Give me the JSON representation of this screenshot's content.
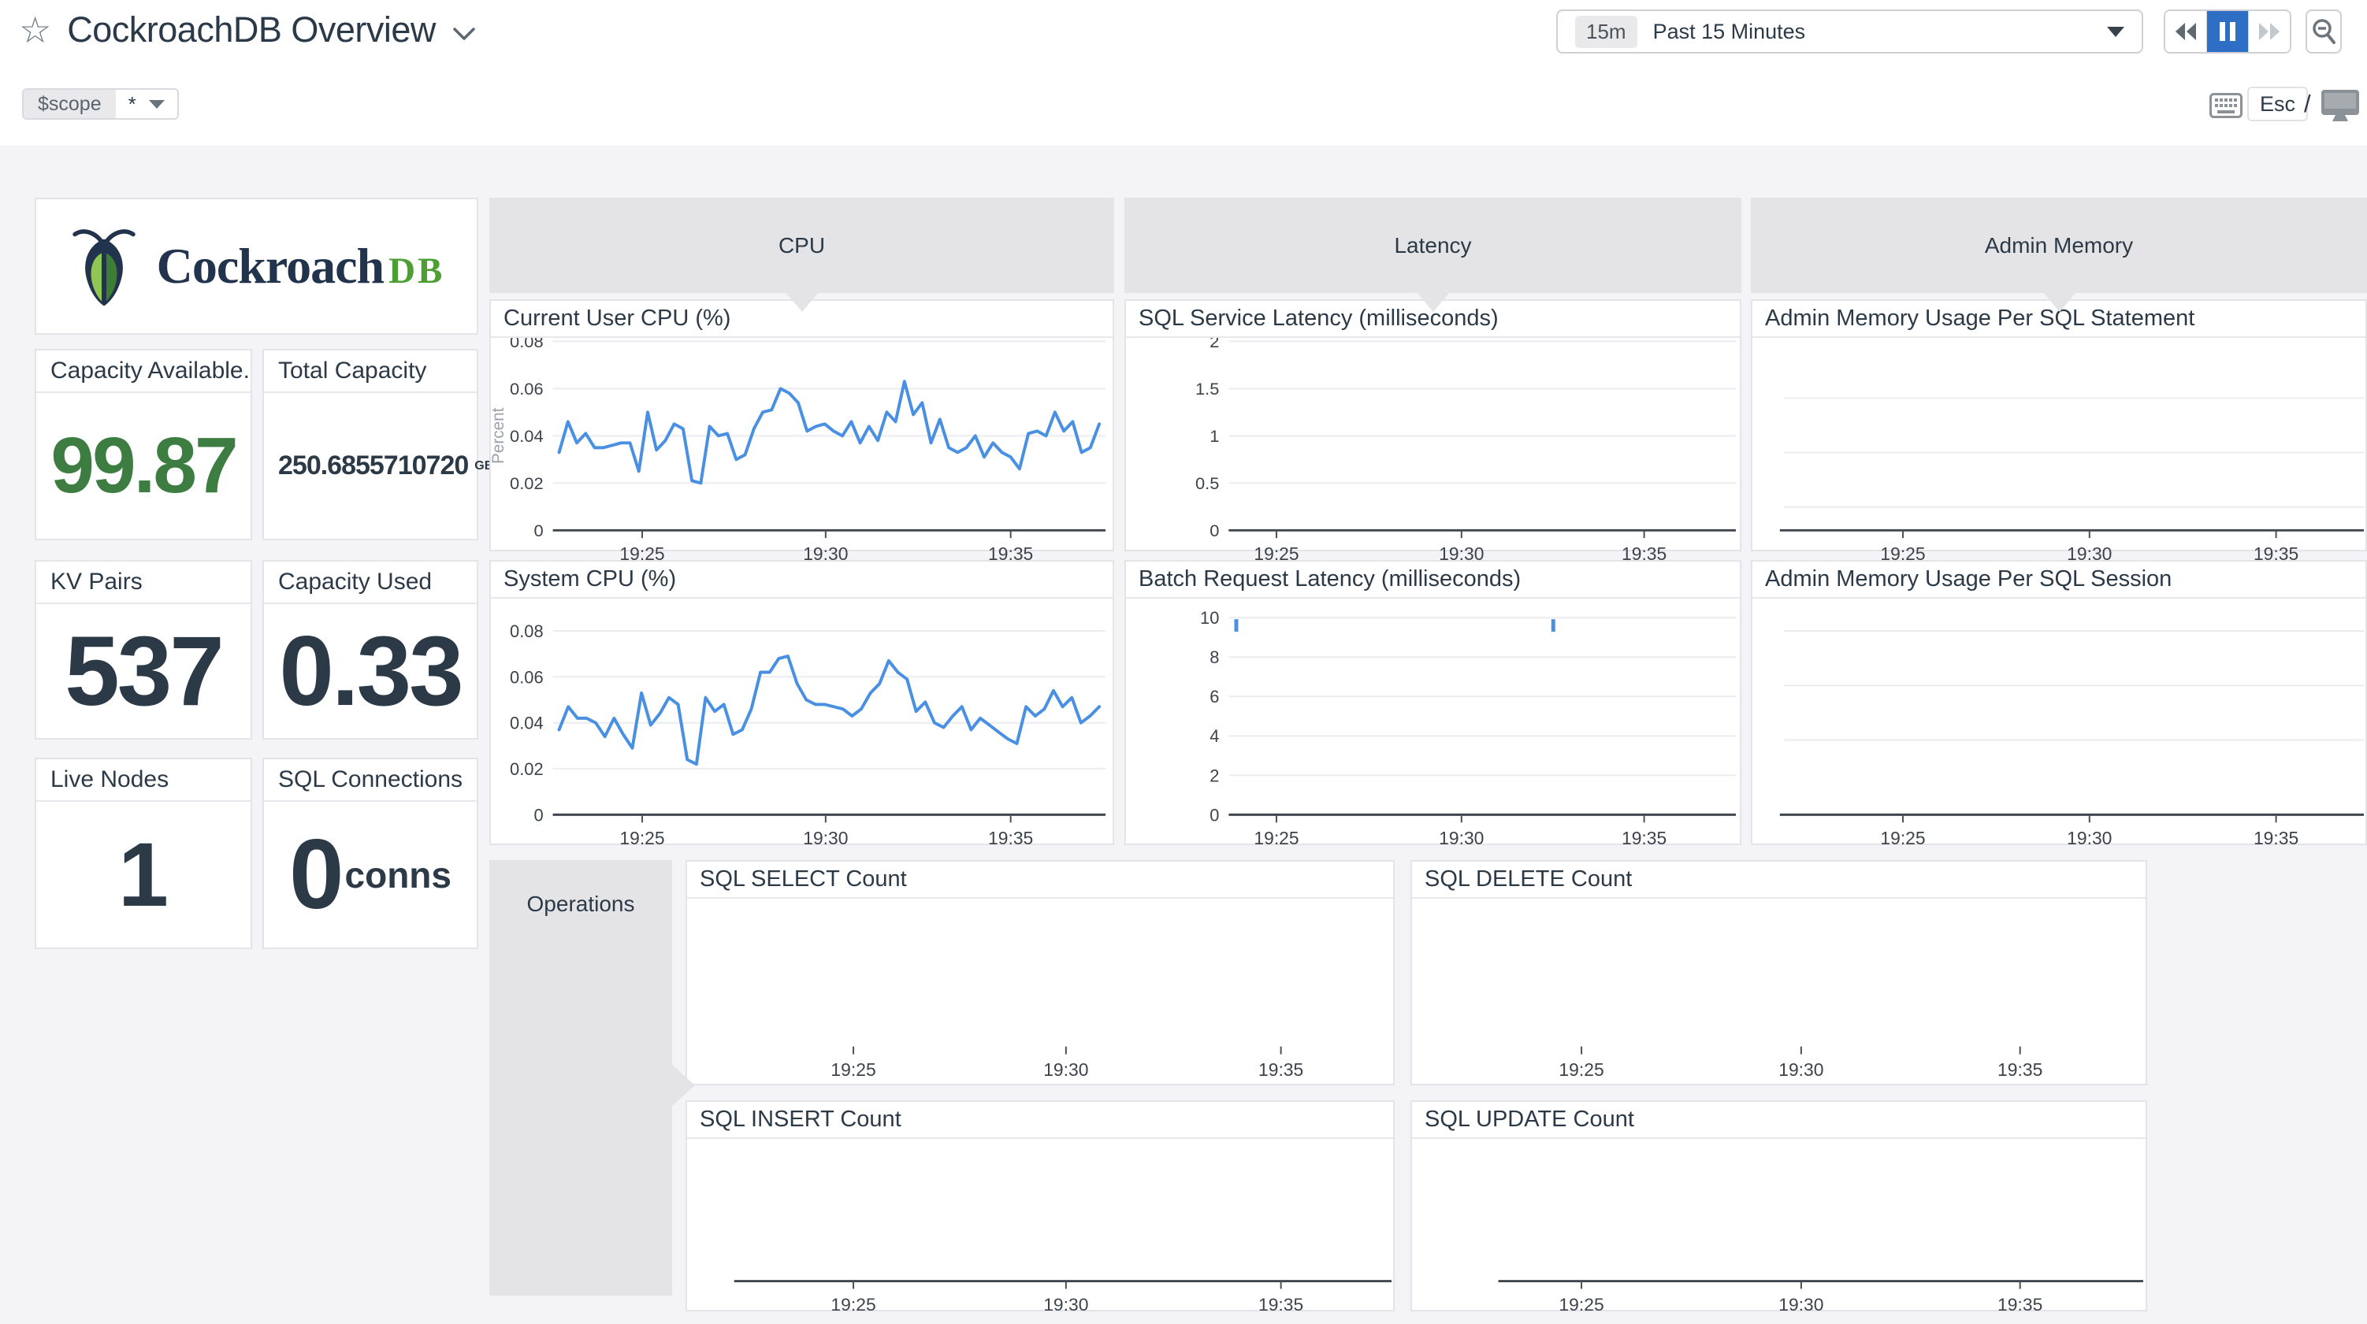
{
  "header": {
    "title": "CockroachDB Overview",
    "time_shortcut": "15m",
    "time_label": "Past 15 Minutes"
  },
  "scope_bar": {
    "variable": "$scope",
    "value": "*",
    "esc": "Esc",
    "slash": "/"
  },
  "logo": {
    "brand": "Cockroach",
    "suffix": "DB"
  },
  "colors": {
    "line_blue": "#4a90e2",
    "value_green": "#3e7d42",
    "pause_blue": "#2e6fc5",
    "group_gray": "#e4e4e6"
  },
  "groups": {
    "cpu": "CPU",
    "latency": "Latency",
    "admin_memory": "Admin Memory",
    "operations": "Operations"
  },
  "stat_cards": [
    {
      "title": "Capacity Available...",
      "value": "99.87"
    },
    {
      "title": "Total Capacity",
      "value": "250.6855710720",
      "unit": "GB"
    },
    {
      "title": "KV Pairs",
      "value": "537"
    },
    {
      "title": "Capacity Used",
      "value": "0.33"
    },
    {
      "title": "Live Nodes",
      "value": "1"
    },
    {
      "title": "SQL Connections",
      "value": "0",
      "unit": "conns"
    }
  ],
  "chart_data": [
    {
      "type": "line",
      "title": "Current User CPU (%)",
      "ylabel": "Percent",
      "ylim": [
        0,
        0.08
      ],
      "y_ticks": [
        {
          "v": 0,
          "label": "0"
        },
        {
          "v": 0.02,
          "label": "0.02"
        },
        {
          "v": 0.04,
          "label": "0.04"
        },
        {
          "v": 0.06,
          "label": "0.06"
        },
        {
          "v": 0.08,
          "label": "0.08"
        }
      ],
      "x_ticks": [
        "19:25",
        "19:30",
        "19:35"
      ],
      "values": [
        0.033,
        0.046,
        0.037,
        0.041,
        0.035,
        0.035,
        0.036,
        0.037,
        0.037,
        0.025,
        0.05,
        0.034,
        0.038,
        0.045,
        0.043,
        0.021,
        0.02,
        0.044,
        0.04,
        0.041,
        0.03,
        0.032,
        0.043,
        0.05,
        0.051,
        0.06,
        0.058,
        0.054,
        0.042,
        0.044,
        0.045,
        0.042,
        0.04,
        0.046,
        0.037,
        0.044,
        0.038,
        0.05,
        0.046,
        0.063,
        0.049,
        0.054,
        0.037,
        0.047,
        0.035,
        0.033,
        0.035,
        0.04,
        0.031,
        0.037,
        0.033,
        0.031,
        0.026,
        0.041,
        0.042,
        0.04,
        0.05,
        0.042,
        0.046,
        0.033,
        0.035,
        0.045
      ]
    },
    {
      "type": "line",
      "title": "System CPU (%)",
      "ylim": [
        0,
        0.08
      ],
      "y_ticks": [
        {
          "v": 0,
          "label": "0"
        },
        {
          "v": 0.02,
          "label": "0.02"
        },
        {
          "v": 0.04,
          "label": "0.04"
        },
        {
          "v": 0.06,
          "label": "0.06"
        },
        {
          "v": 0.08,
          "label": "0.08"
        }
      ],
      "x_ticks": [
        "19:25",
        "19:30",
        "19:35"
      ],
      "values": [
        0.037,
        0.047,
        0.042,
        0.042,
        0.04,
        0.034,
        0.042,
        0.035,
        0.029,
        0.053,
        0.039,
        0.044,
        0.051,
        0.048,
        0.024,
        0.022,
        0.051,
        0.045,
        0.048,
        0.035,
        0.037,
        0.046,
        0.062,
        0.062,
        0.068,
        0.069,
        0.057,
        0.05,
        0.048,
        0.048,
        0.047,
        0.046,
        0.043,
        0.046,
        0.053,
        0.057,
        0.067,
        0.062,
        0.059,
        0.045,
        0.049,
        0.04,
        0.038,
        0.043,
        0.047,
        0.037,
        0.042,
        0.039,
        0.036,
        0.033,
        0.031,
        0.047,
        0.043,
        0.046,
        0.054,
        0.047,
        0.051,
        0.04,
        0.043,
        0.047
      ]
    },
    {
      "type": "line",
      "title": "SQL Service Latency (milliseconds)",
      "ylim": [
        0,
        2
      ],
      "y_ticks": [
        {
          "v": 0,
          "label": "0"
        },
        {
          "v": 0.5,
          "label": "0.5"
        },
        {
          "v": 1,
          "label": "1"
        },
        {
          "v": 1.5,
          "label": "1.5"
        },
        {
          "v": 2,
          "label": "2"
        }
      ],
      "x_ticks": [
        "19:25",
        "19:30",
        "19:35"
      ],
      "values": []
    },
    {
      "type": "line",
      "title": "Batch Request Latency (milliseconds)",
      "ylim": [
        0,
        10
      ],
      "y_ticks": [
        {
          "v": 0,
          "label": "0"
        },
        {
          "v": 2,
          "label": "2"
        },
        {
          "v": 4,
          "label": "4"
        },
        {
          "v": 6,
          "label": "6"
        },
        {
          "v": 8,
          "label": "8"
        },
        {
          "v": 10,
          "label": "10"
        }
      ],
      "x_ticks": [
        "19:25",
        "19:30",
        "19:35"
      ],
      "values": [],
      "spikes": [
        {
          "time_frac": 0.015,
          "value": 10
        },
        {
          "time_frac": 0.64,
          "value": 10
        }
      ]
    },
    {
      "type": "line",
      "title": "Admin Memory Usage Per SQL Statement",
      "x_ticks": [
        "19:25",
        "19:30",
        "19:35"
      ],
      "values": []
    },
    {
      "type": "line",
      "title": "Admin Memory Usage Per SQL Session",
      "x_ticks": [
        "19:25",
        "19:30",
        "19:35"
      ],
      "values": []
    },
    {
      "type": "line",
      "title": "SQL SELECT Count",
      "x_ticks": [
        "19:25",
        "19:30",
        "19:35"
      ],
      "values": []
    },
    {
      "type": "line",
      "title": "SQL DELETE Count",
      "x_ticks": [
        "19:25",
        "19:30",
        "19:35"
      ],
      "values": []
    },
    {
      "type": "line",
      "title": "SQL INSERT Count",
      "x_ticks": [
        "19:25",
        "19:30",
        "19:35"
      ],
      "values": []
    },
    {
      "type": "line",
      "title": "SQL UPDATE Count",
      "x_ticks": [
        "19:25",
        "19:30",
        "19:35"
      ],
      "values": []
    }
  ]
}
